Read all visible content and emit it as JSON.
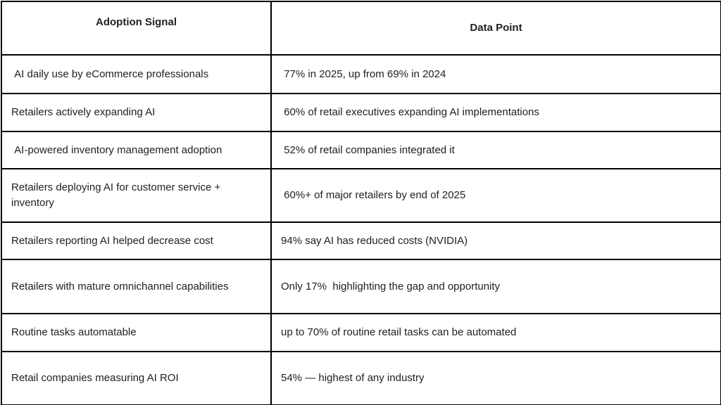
{
  "table": {
    "headers": {
      "signal": "Adoption Signal",
      "data_point": "Data Point"
    },
    "rows": [
      {
        "signal": " AI daily use by eCommerce professionals",
        "data_point": " 77% in 2025, up from 69% in 2024"
      },
      {
        "signal": "Retailers actively expanding AI",
        "data_point": " 60% of retail executives expanding AI implementations"
      },
      {
        "signal": " AI-powered inventory management adoption",
        "data_point": " 52% of retail companies integrated it"
      },
      {
        "signal": "Retailers deploying AI for customer service + inventory",
        "data_point": " 60%+ of major retailers by end of 2025"
      },
      {
        "signal": "Retailers reporting AI helped decrease cost",
        "data_point": "94% say AI has reduced costs (NVIDIA)"
      },
      {
        "signal": "Retailers with mature omnichannel capabilities",
        "data_point": "Only 17%  highlighting the gap and opportunity"
      },
      {
        "signal": "Routine tasks automatable",
        "data_point": "up to 70% of routine retail tasks can be automated"
      },
      {
        "signal": "Retail companies measuring AI ROI",
        "data_point": "54% — highest of any industry"
      }
    ]
  },
  "colors": {
    "border": "#000000",
    "text": "#212121",
    "background": "#ffffff"
  }
}
